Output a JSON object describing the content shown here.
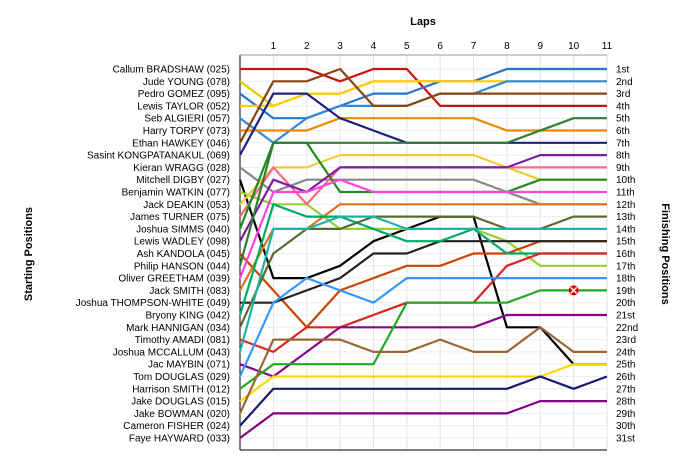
{
  "chart_data": {
    "type": "line",
    "title": "",
    "xlabel": "Laps",
    "ylabel_left": "Starting Positions",
    "ylabel_right": "Finishing Positions",
    "x": [
      0,
      1,
      2,
      3,
      4,
      5,
      6,
      7,
      8,
      9,
      10,
      11
    ],
    "x_tick_labels": [
      "1",
      "2",
      "3",
      "4",
      "5",
      "6",
      "7",
      "8",
      "9",
      "10",
      "11"
    ],
    "ylim": [
      1,
      31
    ],
    "grid": true,
    "legend": "none",
    "finishing_position_labels": [
      "1st",
      "2nd",
      "3rd",
      "4th",
      "5th",
      "6th",
      "7th",
      "8th",
      "9th",
      "10th",
      "11th",
      "12th",
      "13th",
      "14th",
      "15th",
      "16th",
      "17th",
      "18th",
      "19th",
      "20th",
      "21st",
      "22nd",
      "23rd",
      "24th",
      "25th",
      "26th",
      "27th",
      "28th",
      "29th",
      "30th",
      "31st"
    ],
    "series": [
      {
        "name": "Callum BRADSHAW (025)",
        "color": "#cc1111",
        "values": [
          1,
          1,
          1,
          2,
          1,
          1,
          4,
          4,
          4,
          4,
          4,
          4
        ]
      },
      {
        "name": "Jude YOUNG (078)",
        "color": "#ddcc00",
        "values": [
          2,
          4,
          3,
          3,
          2,
          2,
          2,
          2,
          1,
          1,
          1,
          1
        ]
      },
      {
        "name": "Pedro GOMEZ (095)",
        "color": "#2277cc",
        "values": [
          3,
          5,
          5,
          4,
          3,
          3,
          2,
          2,
          1,
          1,
          1,
          1
        ]
      },
      {
        "name": "Lewis TAYLOR (052)",
        "color": "#ffcc00",
        "values": [
          4,
          4,
          3,
          3,
          2,
          2,
          2,
          2,
          2,
          2,
          2,
          2
        ]
      },
      {
        "name": "Seb ALGIERI (057)",
        "color": "#3388dd",
        "values": [
          5,
          7,
          5,
          4,
          4,
          4,
          3,
          3,
          2,
          2,
          2,
          2
        ]
      },
      {
        "name": "Harry TORPY (073)",
        "color": "#ee8800",
        "values": [
          6,
          6,
          6,
          5,
          5,
          5,
          5,
          5,
          6,
          6,
          6,
          6
        ]
      },
      {
        "name": "Ethan HAWKEY (046)",
        "color": "#8b4513",
        "values": [
          7,
          2,
          2,
          1,
          4,
          4,
          3,
          3,
          3,
          3,
          3,
          3
        ]
      },
      {
        "name": "Sasint KONGPATANAKUL (069)",
        "color": "#1a237e",
        "values": [
          8,
          3,
          3,
          5,
          6,
          7,
          7,
          7,
          7,
          7,
          7,
          7
        ]
      },
      {
        "name": "Kieran WRAGG (028)",
        "color": "#888888",
        "values": [
          9,
          11,
          10,
          10,
          10,
          10,
          10,
          10,
          11,
          12,
          12,
          12
        ]
      },
      {
        "name": "Mitchell DIGBY (027)",
        "color": "#000000",
        "values": [
          10,
          18,
          18,
          17,
          15,
          14,
          13,
          13,
          22,
          22,
          25,
          25
        ]
      },
      {
        "name": "Benjamin WATKIN (077)",
        "color": "#9acd32",
        "values": [
          11,
          12,
          12,
          14,
          14,
          14,
          14,
          14,
          15,
          17,
          17,
          17
        ]
      },
      {
        "name": "Jack DEAKIN (053)",
        "color": "#eecc33",
        "values": [
          12,
          9,
          9,
          8,
          8,
          8,
          8,
          8,
          9,
          10,
          10,
          10
        ]
      },
      {
        "name": "James TURNER (075)",
        "color": "#ff6688",
        "values": [
          13,
          9,
          12,
          9,
          9,
          9,
          9,
          9,
          9,
          9,
          9,
          9
        ]
      },
      {
        "name": "Joshua SIMMS (040)",
        "color": "#228b22",
        "values": [
          14,
          7,
          7,
          11,
          11,
          11,
          11,
          11,
          11,
          10,
          10,
          10
        ]
      },
      {
        "name": "Lewis WADLEY (098)",
        "color": "#7b1fa2",
        "values": [
          15,
          10,
          11,
          9,
          9,
          9,
          9,
          9,
          9,
          8,
          8,
          8
        ]
      },
      {
        "name": "Ash KANDOLA (045)",
        "color": "#cc4400",
        "values": [
          16,
          19,
          22,
          19,
          18,
          17,
          17,
          16,
          16,
          15,
          15,
          15
        ]
      },
      {
        "name": "Philip HANSON (044)",
        "color": "#2e7d32",
        "values": [
          17,
          7,
          7,
          7,
          7,
          7,
          7,
          7,
          7,
          6,
          5,
          5
        ]
      },
      {
        "name": "Oliver GREETHAM (039)",
        "color": "#ff44dd",
        "values": [
          18,
          11,
          11,
          10,
          11,
          11,
          11,
          11,
          11,
          11,
          11,
          11
        ]
      },
      {
        "name": "Jack SMITH (083)",
        "color": "#e07020",
        "values": [
          19,
          14,
          14,
          12,
          12,
          12,
          12,
          12,
          12,
          12,
          12,
          12
        ]
      },
      {
        "name": "Joshua THOMPSON-WHITE (049)",
        "color": "#222222",
        "values": [
          20,
          20,
          19,
          18,
          16,
          16,
          15,
          15,
          15,
          15,
          15,
          15
        ]
      },
      {
        "name": "Bryony KING (042)",
        "color": "#00aa66",
        "values": [
          21,
          12,
          13,
          13,
          14,
          15,
          15,
          14,
          16,
          16,
          16,
          16
        ]
      },
      {
        "name": "Mark HANNIGAN (034)",
        "color": "#556b2f",
        "values": [
          22,
          16,
          14,
          14,
          13,
          13,
          13,
          13,
          14,
          14,
          13,
          13
        ]
      },
      {
        "name": "Timothy AMADI (081)",
        "color": "#dd2222",
        "values": [
          23,
          24,
          22,
          22,
          21,
          20,
          20,
          20,
          17,
          16,
          16,
          16
        ]
      },
      {
        "name": "Joshua MCCALLUM (043)",
        "color": "#20b2aa",
        "values": [
          24,
          14,
          14,
          13,
          13,
          14,
          14,
          14,
          14,
          14,
          14,
          14
        ]
      },
      {
        "name": "Jac MAYBIN (071)",
        "color": "#8b008b",
        "values": [
          25,
          26,
          24,
          22,
          22,
          22,
          22,
          22,
          21,
          21,
          21,
          21
        ]
      },
      {
        "name": "Tom DOUGLAS (029)",
        "color": "#3399ff",
        "values": [
          26,
          20,
          18,
          19,
          20,
          18,
          18,
          18,
          18,
          18,
          18,
          18
        ]
      },
      {
        "name": "Harrison SMITH (012)",
        "color": "#22aa22",
        "values": [
          27,
          25,
          25,
          25,
          25,
          20,
          20,
          20,
          20,
          19,
          19,
          19
        ]
      },
      {
        "name": "Jake DOUGLAS (015)",
        "color": "#ffd700",
        "values": [
          28,
          26,
          26,
          26,
          26,
          26,
          26,
          26,
          26,
          26,
          25,
          25
        ]
      },
      {
        "name": "Jake BOWMAN (020)",
        "color": "#996633",
        "values": [
          29,
          23,
          23,
          23,
          24,
          24,
          23,
          24,
          24,
          22,
          24,
          24
        ]
      },
      {
        "name": "Cameron FISHER (024)",
        "color": "#191970",
        "values": [
          30,
          27,
          27,
          27,
          27,
          27,
          27,
          27,
          27,
          26,
          27,
          26
        ]
      },
      {
        "name": "Faye HAYWARD (033)",
        "color": "#800080",
        "values": [
          31,
          29,
          29,
          29,
          29,
          29,
          29,
          29,
          29,
          28,
          28,
          28
        ]
      }
    ],
    "dnf_marker": {
      "series": "Harrison SMITH (012)",
      "lap": 10,
      "position": 19,
      "color": "#dd0000"
    }
  }
}
